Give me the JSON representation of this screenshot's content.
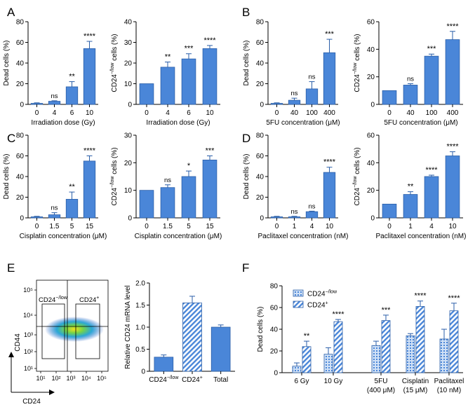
{
  "colors": {
    "bar": "#4a86d8",
    "bar_stroke": "#2a5ea8",
    "hatch_fill": "#ffffff",
    "axis": "#000000"
  },
  "chart_data": [
    {
      "id": "A1",
      "panel": "A",
      "type": "bar",
      "ylabel": "Dead cells (%)",
      "xlabel": "Irradiation dose (Gy)",
      "categories": [
        "0",
        "4",
        "6",
        "10"
      ],
      "values": [
        1,
        3,
        17,
        54
      ],
      "errors": [
        0.5,
        0.5,
        5,
        7
      ],
      "ylim": [
        0,
        80
      ],
      "yticks": [
        0,
        20,
        40,
        60,
        80
      ],
      "sig": [
        "",
        "ns",
        "**",
        "****"
      ]
    },
    {
      "id": "A2",
      "type": "bar",
      "ylabel": "CD24",
      "ylabel_sup": "−/low",
      "ylabel_suffix": " cells (%)",
      "xlabel": "Irradiation dose (Gy)",
      "categories": [
        "0",
        "4",
        "6",
        "10"
      ],
      "values": [
        10,
        18,
        22,
        27
      ],
      "errors": [
        0,
        2.5,
        2.5,
        1.5
      ],
      "ylim": [
        0,
        40
      ],
      "yticks": [
        0,
        10,
        20,
        30,
        40
      ],
      "sig": [
        "",
        "**",
        "***",
        "****"
      ]
    },
    {
      "id": "B1",
      "panel": "B",
      "type": "bar",
      "ylabel": "Dead cells (%)",
      "xlabel": "5FU concentration (μM)",
      "categories": [
        "0",
        "40",
        "100",
        "400"
      ],
      "values": [
        1,
        4,
        15,
        50
      ],
      "errors": [
        0.5,
        2,
        7,
        13
      ],
      "ylim": [
        0,
        80
      ],
      "yticks": [
        0,
        20,
        40,
        60,
        80
      ],
      "sig": [
        "",
        "ns",
        "ns",
        "***"
      ]
    },
    {
      "id": "B2",
      "type": "bar",
      "ylabel": "CD24",
      "ylabel_sup": "−/low",
      "ylabel_suffix": " cells (%)",
      "xlabel": "5FU concentration (μM)",
      "categories": [
        "0",
        "40",
        "100",
        "400"
      ],
      "values": [
        10,
        14,
        35,
        47
      ],
      "errors": [
        0,
        1,
        1.5,
        6
      ],
      "ylim": [
        0,
        60
      ],
      "yticks": [
        0,
        20,
        40,
        60
      ],
      "sig": [
        "",
        "ns",
        "***",
        "****"
      ]
    },
    {
      "id": "C1",
      "panel": "C",
      "type": "bar",
      "ylabel": "Dead cells (%)",
      "xlabel": "Cisplatin concentration (μM)",
      "categories": [
        "0",
        "1.5",
        "5",
        "15"
      ],
      "values": [
        1,
        3,
        18,
        55
      ],
      "errors": [
        0.5,
        2,
        7,
        5
      ],
      "ylim": [
        0,
        80
      ],
      "yticks": [
        0,
        20,
        40,
        60,
        80
      ],
      "sig": [
        "",
        "ns",
        "**",
        "****"
      ]
    },
    {
      "id": "C2",
      "type": "bar",
      "ylabel": "CD24",
      "ylabel_sup": "−/low",
      "ylabel_suffix": " cells (%)",
      "xlabel": "Cisplatin concentration (μM)",
      "categories": [
        "0",
        "1.5",
        "5",
        "15"
      ],
      "values": [
        10,
        11,
        15,
        21
      ],
      "errors": [
        0,
        1,
        2,
        1.5
      ],
      "ylim": [
        0,
        30
      ],
      "yticks": [
        0,
        10,
        20,
        30
      ],
      "sig": [
        "",
        "ns",
        "*",
        "***"
      ]
    },
    {
      "id": "D1",
      "panel": "D",
      "type": "bar",
      "ylabel": "Dead cells (%)",
      "xlabel": "Paclitaxel concentration (nM)",
      "categories": [
        "0",
        "1",
        "4",
        "10"
      ],
      "values": [
        1,
        1,
        6,
        44
      ],
      "errors": [
        0.5,
        0.5,
        0.5,
        5
      ],
      "ylim": [
        0,
        80
      ],
      "yticks": [
        0,
        20,
        40,
        60,
        80
      ],
      "sig": [
        "",
        "ns",
        "ns",
        "****"
      ]
    },
    {
      "id": "D2",
      "type": "bar",
      "ylabel": "CD24",
      "ylabel_sup": "−/low",
      "ylabel_suffix": " cells (%)",
      "xlabel": "Paclitaxel concentration (nM)",
      "categories": [
        "0",
        "1",
        "4",
        "10"
      ],
      "values": [
        10,
        17,
        30,
        45
      ],
      "errors": [
        0,
        2,
        1,
        3
      ],
      "ylim": [
        0,
        60
      ],
      "yticks": [
        0,
        20,
        40,
        60
      ],
      "sig": [
        "",
        "**",
        "****",
        "****"
      ]
    },
    {
      "id": "E2",
      "type": "bar",
      "ylabel": "Relative CD24 mRNA level",
      "xlabel": "",
      "categories": [
        "CD24−/low",
        "CD24+",
        "Total"
      ],
      "cat_main": [
        "CD24",
        "CD24",
        "Total"
      ],
      "cat_sup": [
        "−/low",
        "+",
        ""
      ],
      "values": [
        0.32,
        1.55,
        1.0
      ],
      "errors": [
        0.05,
        0.15,
        0.05
      ],
      "ylim": [
        0,
        2.0
      ],
      "yticks": [
        0,
        0.5,
        1.0,
        1.5,
        2.0
      ],
      "ytick_labels": [
        "0",
        "0.5",
        "1.0",
        "1.5",
        "2.0"
      ],
      "hatched": [
        false,
        true,
        false
      ],
      "sig": [
        "",
        "",
        ""
      ]
    },
    {
      "id": "F",
      "panel": "F",
      "type": "bar",
      "ylabel": "Dead cells (%)",
      "xlabel": "",
      "group_main": [
        "6 Gy",
        "10 Gy",
        "5FU",
        "Cisplatin",
        "Paclitaxel"
      ],
      "group_sub": [
        "",
        "",
        "(400 μM)",
        "(15 μM)",
        "(10 nM)"
      ],
      "series": [
        {
          "name": "CD24−/low",
          "name_main": "CD24",
          "name_sup": "−/low",
          "pattern": "dots",
          "values": [
            6,
            17,
            25,
            34,
            31
          ],
          "errors": [
            3,
            6,
            4,
            2,
            9
          ]
        },
        {
          "name": "CD24+",
          "name_main": "CD24",
          "name_sup": "+",
          "pattern": "stripes",
          "values": [
            24,
            47,
            48,
            61,
            57
          ],
          "errors": [
            5,
            2,
            5,
            5,
            7
          ]
        }
      ],
      "sig": [
        "**",
        "****",
        "***",
        "****",
        "****"
      ],
      "ylim": [
        0,
        80
      ],
      "yticks": [
        0,
        20,
        40,
        60,
        80
      ],
      "legend": "top-left"
    }
  ],
  "flow": {
    "panel": "E",
    "xlabel": "CD24",
    "ylabel": "CD44",
    "x_ticks": [
      "10¹",
      "10²",
      "10³",
      "10⁴",
      "10⁵"
    ],
    "y_ticks": [
      "10¹",
      "10²",
      "10³",
      "10⁴",
      "10⁵"
    ],
    "gate_low_main": "CD24",
    "gate_low_sup": "−/low",
    "gate_high_main": "CD24",
    "gate_high_sup": "+"
  }
}
